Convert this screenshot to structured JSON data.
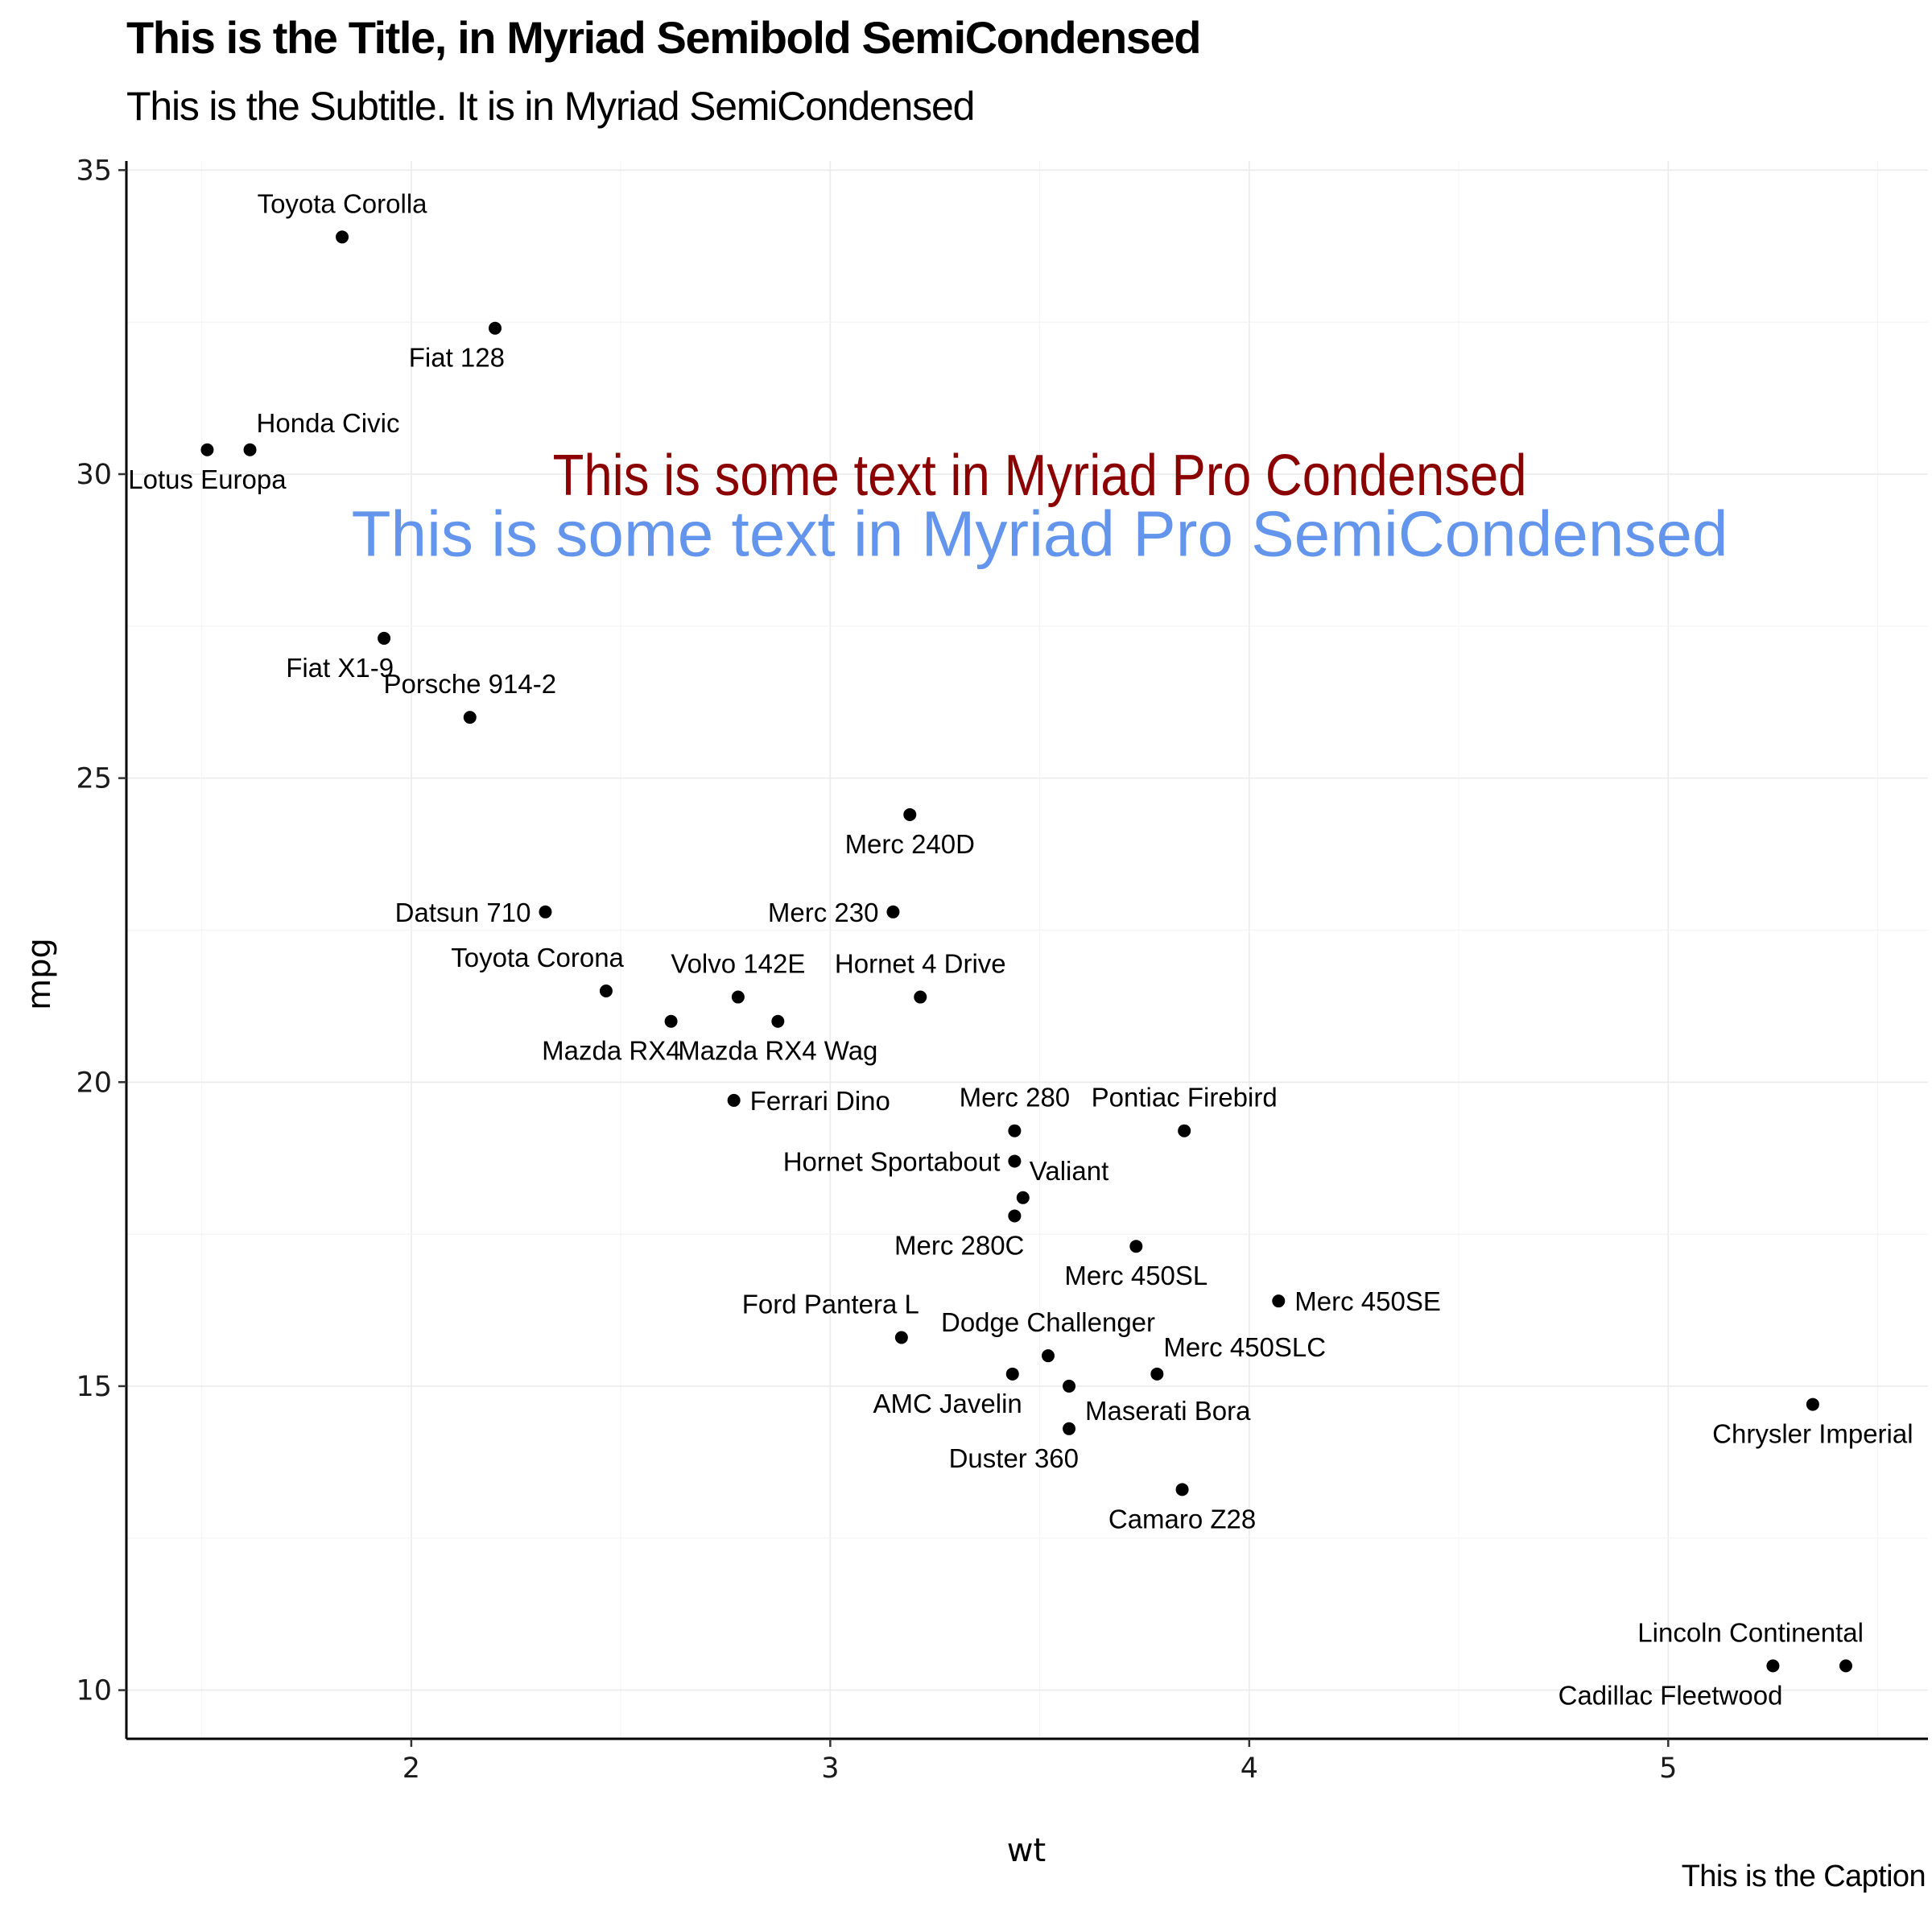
{
  "chart_data": {
    "type": "scatter",
    "title": "This is the Title, in Myriad Semibold SemiCondensed",
    "subtitle": "This is the Subtitle. It is in Myriad SemiCondensed",
    "caption": "This is the Caption",
    "xlabel": "wt",
    "ylabel": "mpg",
    "xlim": [
      1.32,
      5.62
    ],
    "ylim": [
      9.2,
      35.15
    ],
    "xticks": [
      2,
      3,
      4,
      5
    ],
    "yticks": [
      10,
      15,
      20,
      25,
      30,
      35
    ],
    "grid": true,
    "annotations": [
      {
        "text": "This is some text in Myriad Pro Condensed",
        "x": 3.5,
        "y": 30,
        "color": "#8b0000"
      },
      {
        "text": "This is some text in Myriad Pro SemiCondensed",
        "x": 3.5,
        "y": 29,
        "color": "#6495ed"
      }
    ],
    "points": [
      {
        "name": "Mazda RX4",
        "x": 2.62,
        "y": 21.0,
        "pos": "bl"
      },
      {
        "name": "Mazda RX4 Wag",
        "x": 2.875,
        "y": 21.0,
        "pos": "b"
      },
      {
        "name": "Datsun 710",
        "x": 2.32,
        "y": 22.8,
        "pos": "l"
      },
      {
        "name": "Hornet 4 Drive",
        "x": 3.215,
        "y": 21.4,
        "pos": "t"
      },
      {
        "name": "Hornet Sportabout",
        "x": 3.44,
        "y": 18.7,
        "pos": "l"
      },
      {
        "name": "Valiant",
        "x": 3.46,
        "y": 18.1,
        "pos": "tr"
      },
      {
        "name": "Duster 360",
        "x": 3.57,
        "y": 14.3,
        "pos": "bl"
      },
      {
        "name": "Merc 240D",
        "x": 3.19,
        "y": 24.4,
        "pos": "b"
      },
      {
        "name": "Merc 230",
        "x": 3.15,
        "y": 22.8,
        "pos": "l"
      },
      {
        "name": "Merc 280",
        "x": 3.44,
        "y": 19.2,
        "pos": "t"
      },
      {
        "name": "Merc 280C",
        "x": 3.44,
        "y": 17.8,
        "pos": "bl"
      },
      {
        "name": "Merc 450SE",
        "x": 4.07,
        "y": 16.4,
        "pos": "r"
      },
      {
        "name": "Merc 450SL",
        "x": 3.73,
        "y": 17.3,
        "pos": "b"
      },
      {
        "name": "Merc 450SLC",
        "x": 3.78,
        "y": 15.2,
        "pos": "tr"
      },
      {
        "name": "Cadillac Fleetwood",
        "x": 5.25,
        "y": 10.4,
        "pos": "bl"
      },
      {
        "name": "Lincoln Continental",
        "x": 5.424,
        "y": 10.4,
        "pos": "tl"
      },
      {
        "name": "Chrysler Imperial",
        "x": 5.345,
        "y": 14.7,
        "pos": "b"
      },
      {
        "name": "Fiat 128",
        "x": 2.2,
        "y": 32.4,
        "pos": "bl"
      },
      {
        "name": "Honda Civic",
        "x": 1.615,
        "y": 30.4,
        "pos": "tr"
      },
      {
        "name": "Toyota Corolla",
        "x": 1.835,
        "y": 33.9,
        "pos": "t"
      },
      {
        "name": "Toyota Corona",
        "x": 2.465,
        "y": 21.5,
        "pos": "tl"
      },
      {
        "name": "Dodge Challenger",
        "x": 3.52,
        "y": 15.5,
        "pos": "t"
      },
      {
        "name": "AMC Javelin",
        "x": 3.435,
        "y": 15.2,
        "pos": "bl"
      },
      {
        "name": "Camaro Z28",
        "x": 3.84,
        "y": 13.3,
        "pos": "b"
      },
      {
        "name": "Pontiac Firebird",
        "x": 3.845,
        "y": 19.2,
        "pos": "t"
      },
      {
        "name": "Fiat X1-9",
        "x": 1.935,
        "y": 27.3,
        "pos": "bl"
      },
      {
        "name": "Porsche 914-2",
        "x": 2.14,
        "y": 26.0,
        "pos": "t"
      },
      {
        "name": "Lotus Europa",
        "x": 1.513,
        "y": 30.4,
        "pos": "b"
      },
      {
        "name": "Ford Pantera L",
        "x": 3.17,
        "y": 15.8,
        "pos": "tl"
      },
      {
        "name": "Ferrari Dino",
        "x": 2.77,
        "y": 19.7,
        "pos": "r"
      },
      {
        "name": "Maserati Bora",
        "x": 3.57,
        "y": 15.0,
        "pos": "br"
      },
      {
        "name": "Volvo 142E",
        "x": 2.78,
        "y": 21.4,
        "pos": "t"
      }
    ]
  }
}
